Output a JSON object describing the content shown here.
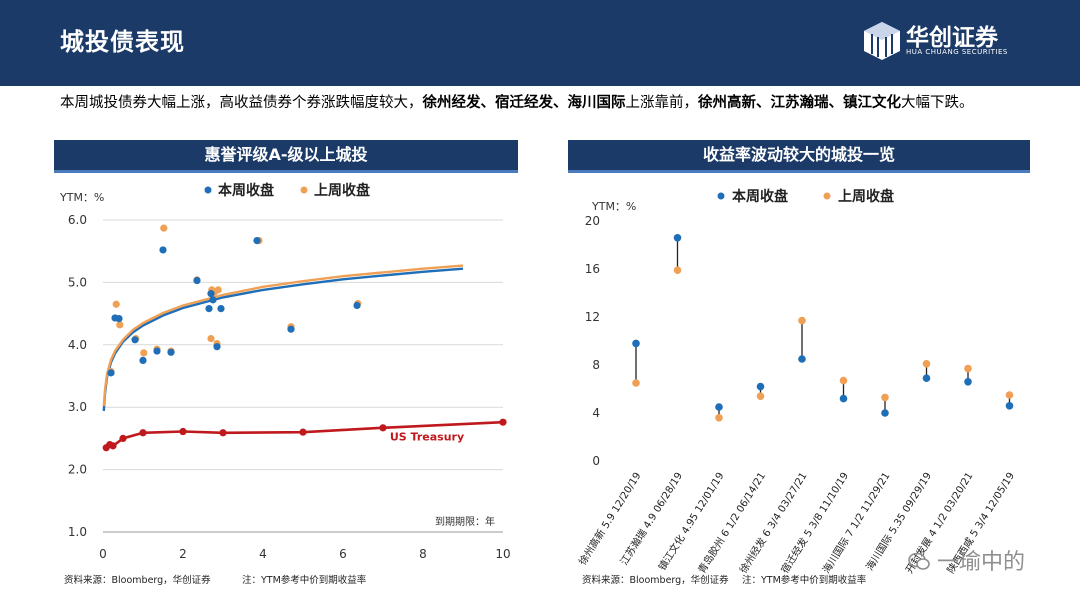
{
  "header": {
    "title": "城投债表现"
  },
  "logo": {
    "name_cn": "华创证券",
    "name_en": "HUA CHUANG SECURITIES"
  },
  "summary": {
    "seg1": "本周城投债券大幅上涨，高收益债券个券涨跌幅度较大，",
    "bold1": "徐州经发、宿迁经发、海川国际",
    "seg2": "上涨靠前，",
    "bold2": "徐州高新、江苏瀚瑞、镇江文化",
    "seg3": "大幅下跌。"
  },
  "colors": {
    "this_week": "#1f6eb8",
    "last_week": "#f0a055",
    "treasury": "#c0191d",
    "navy": "#1b3a68"
  },
  "chart_data": [
    {
      "type": "scatter",
      "title": "惠誉评级A-级以上城投",
      "ylabel": "YTM：%",
      "xlabel": "到期期限：年",
      "xlim": [
        0,
        10
      ],
      "ylim": [
        1.0,
        6.0
      ],
      "xticks": [
        "0",
        "2",
        "4",
        "6",
        "8",
        "10"
      ],
      "yticks": [
        "1.0",
        "2.0",
        "3.0",
        "4.0",
        "5.0",
        "6.0"
      ],
      "legend": [
        "本周收盘",
        "上周收盘"
      ],
      "series": [
        {
          "name": "本周收盘",
          "points": [
            [
              0.2,
              3.55
            ],
            [
              0.3,
              4.43
            ],
            [
              0.4,
              4.42
            ],
            [
              0.8,
              4.08
            ],
            [
              1.0,
              3.75
            ],
            [
              1.35,
              3.9
            ],
            [
              1.5,
              5.52
            ],
            [
              1.7,
              3.88
            ],
            [
              2.35,
              5.03
            ],
            [
              2.65,
              4.58
            ],
            [
              2.7,
              4.82
            ],
            [
              2.75,
              4.72
            ],
            [
              2.85,
              3.97
            ],
            [
              2.95,
              4.58
            ],
            [
              3.85,
              5.67
            ],
            [
              4.7,
              4.25
            ],
            [
              6.35,
              4.63
            ]
          ]
        },
        {
          "name": "上周收盘",
          "points": [
            [
              0.2,
              3.57
            ],
            [
              0.33,
              4.65
            ],
            [
              0.42,
              4.32
            ],
            [
              0.82,
              4.1
            ],
            [
              1.02,
              3.87
            ],
            [
              1.35,
              3.93
            ],
            [
              1.52,
              5.87
            ],
            [
              1.7,
              3.9
            ],
            [
              2.35,
              5.04
            ],
            [
              2.7,
              4.1
            ],
            [
              2.72,
              4.88
            ],
            [
              2.78,
              4.84
            ],
            [
              2.88,
              4.88
            ],
            [
              2.85,
              4.02
            ],
            [
              3.9,
              5.67
            ],
            [
              4.7,
              4.29
            ],
            [
              6.37,
              4.66
            ]
          ]
        }
      ],
      "curves": [
        {
          "name": "本周拟合",
          "x": [
            0.02,
            0.05,
            0.1,
            0.2,
            0.3,
            0.5,
            0.75,
            1,
            1.5,
            2,
            3,
            4,
            5,
            6,
            7,
            8,
            9
          ],
          "y": [
            2.94,
            3.22,
            3.48,
            3.72,
            3.86,
            4.05,
            4.2,
            4.31,
            4.47,
            4.59,
            4.76,
            4.88,
            4.97,
            5.05,
            5.11,
            5.17,
            5.22
          ]
        },
        {
          "name": "上周拟合",
          "x": [
            0.02,
            0.05,
            0.1,
            0.2,
            0.3,
            0.5,
            0.75,
            1,
            1.5,
            2,
            3,
            4,
            5,
            6,
            7,
            8,
            9
          ],
          "y": [
            3.02,
            3.28,
            3.53,
            3.76,
            3.9,
            4.08,
            4.24,
            4.35,
            4.51,
            4.63,
            4.8,
            4.93,
            5.02,
            5.1,
            5.16,
            5.22,
            5.27
          ]
        }
      ],
      "treasury": {
        "name": "US Treasury",
        "x": [
          0.08,
          0.17,
          0.25,
          0.5,
          1,
          2,
          3,
          5,
          7,
          10
        ],
        "y": [
          2.35,
          2.4,
          2.38,
          2.5,
          2.59,
          2.61,
          2.59,
          2.6,
          2.67,
          2.76
        ]
      }
    },
    {
      "type": "dumbbell",
      "title": "收益率波动较大的城投一览",
      "ylabel": "YTM：%",
      "ylim": [
        0,
        20
      ],
      "yticks": [
        "0",
        "4",
        "8",
        "12",
        "16",
        "20"
      ],
      "legend": [
        "本周收盘",
        "上周收盘"
      ],
      "categories": [
        "徐州高新 5.9 12/20/19",
        "江苏瀚瑞 4.9 06/28/19",
        "镇江文化 4.95 12/01/19",
        "青岛胶州 6 1/2 06/14/21",
        "徐州经发 6 3/4 03/27/21",
        "宿迁经发 5 3/8 11/10/19",
        "海川国际 7 1/2 11/29/21",
        "海川国际 5.35 09/29/19",
        "开封发展 4 1/2 03/20/21",
        "陕西西咸 5 3/4 12/05/19"
      ],
      "this_week": [
        9.8,
        18.6,
        4.5,
        6.2,
        8.5,
        5.2,
        4.0,
        6.9,
        6.6,
        4.6
      ],
      "last_week": [
        6.5,
        15.9,
        3.6,
        5.4,
        11.7,
        6.7,
        5.3,
        8.1,
        7.7,
        5.5
      ]
    }
  ],
  "footer": {
    "left_source": "资料来源：Bloomberg，华创证券",
    "left_note": "注：YTM参考中价到期收益率",
    "right_source": "资料来源：Bloomberg，华创证券",
    "right_note": "注：YTM参考中价到期收益率"
  },
  "watermark": "一瑜中的"
}
